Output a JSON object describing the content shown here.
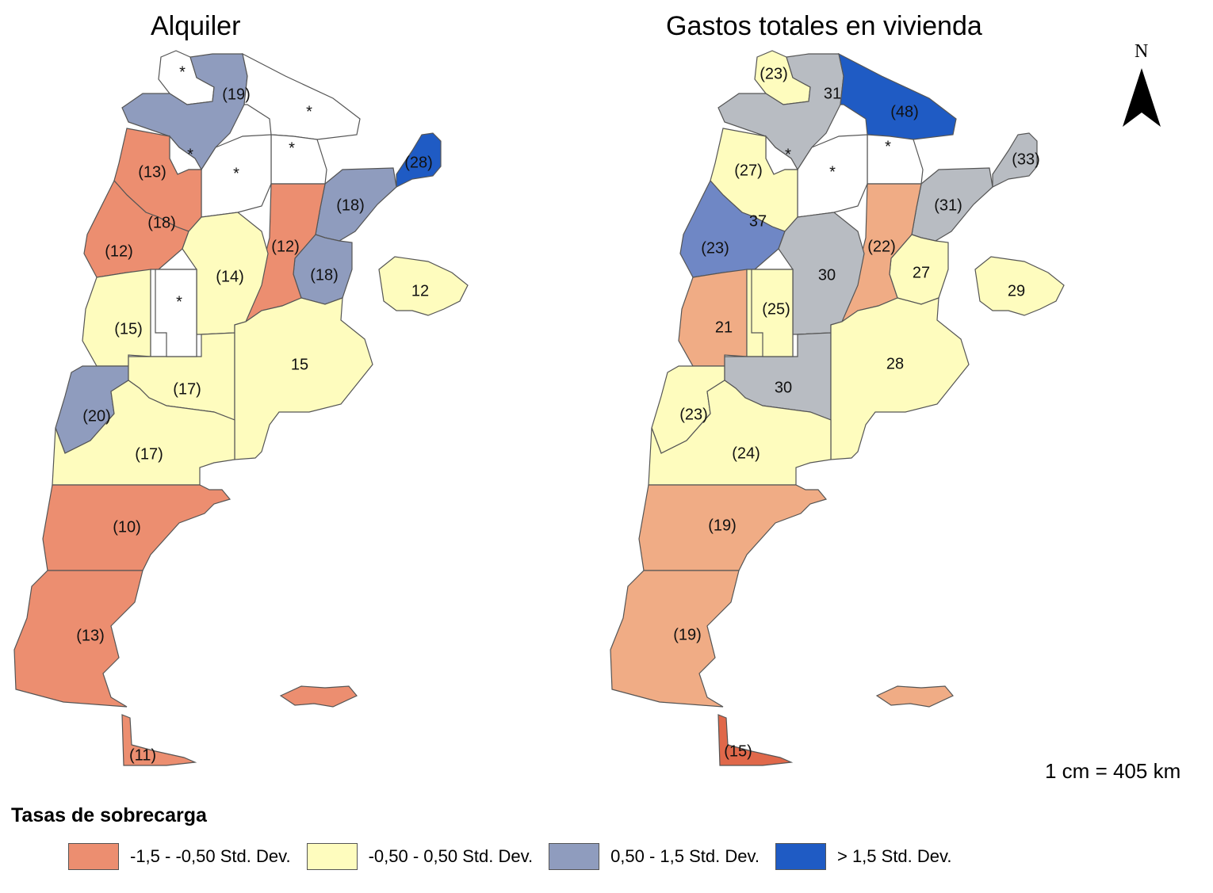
{
  "colors": {
    "class1": "#ec8e70",
    "class2": "#fefcbe",
    "class3": "#8f9cbe",
    "class4": "#1f5bc4",
    "nodata": "#ffffff",
    "right_class1": "#f0ac85",
    "right_tdf": "#e0684a",
    "right_grey": "#b8bcc2",
    "right_lightblue": "#6f87c5",
    "right_blue": "#1f5bc4"
  },
  "maps": {
    "left": {
      "title": "Alquiler",
      "labels": [
        "*",
        "(19)",
        "*",
        "*",
        "*",
        "*",
        "(13)",
        "(28)",
        "(18)",
        "(18)",
        "(12)",
        "(12)",
        "(14)",
        "(18)",
        "12",
        "*",
        "(15)",
        "15",
        "(17)",
        "(20)",
        "(17)",
        "(10)",
        "(13)",
        "(11)"
      ]
    },
    "right": {
      "title": "Gastos totales en vivienda",
      "labels": [
        "(23)",
        "31",
        "(48)",
        "*",
        "*",
        "*",
        "(27)",
        "(33)",
        "37",
        "(31)",
        "(23)",
        "(22)",
        "30",
        "27",
        "29",
        "21",
        "(25)",
        "28",
        "30",
        "(23)",
        "(24)",
        "(19)",
        "(19)",
        "(15)"
      ]
    }
  },
  "north": {
    "letter": "N",
    "icon": "north-arrow-icon"
  },
  "scale": "1 cm = 405 km",
  "legend": {
    "title": "Tasas de sobrecarga",
    "items": [
      {
        "label": "-1,5 - -0,50 Std. Dev.",
        "color": "#ec8e70"
      },
      {
        "label": "-0,50 - 0,50 Std. Dev.",
        "color": "#fefcbe"
      },
      {
        "label": "0,50 - 1,5 Std. Dev.",
        "color": "#8f9cbe"
      },
      {
        "label": "> 1,5 Std. Dev.",
        "color": "#1f5bc4"
      }
    ]
  }
}
